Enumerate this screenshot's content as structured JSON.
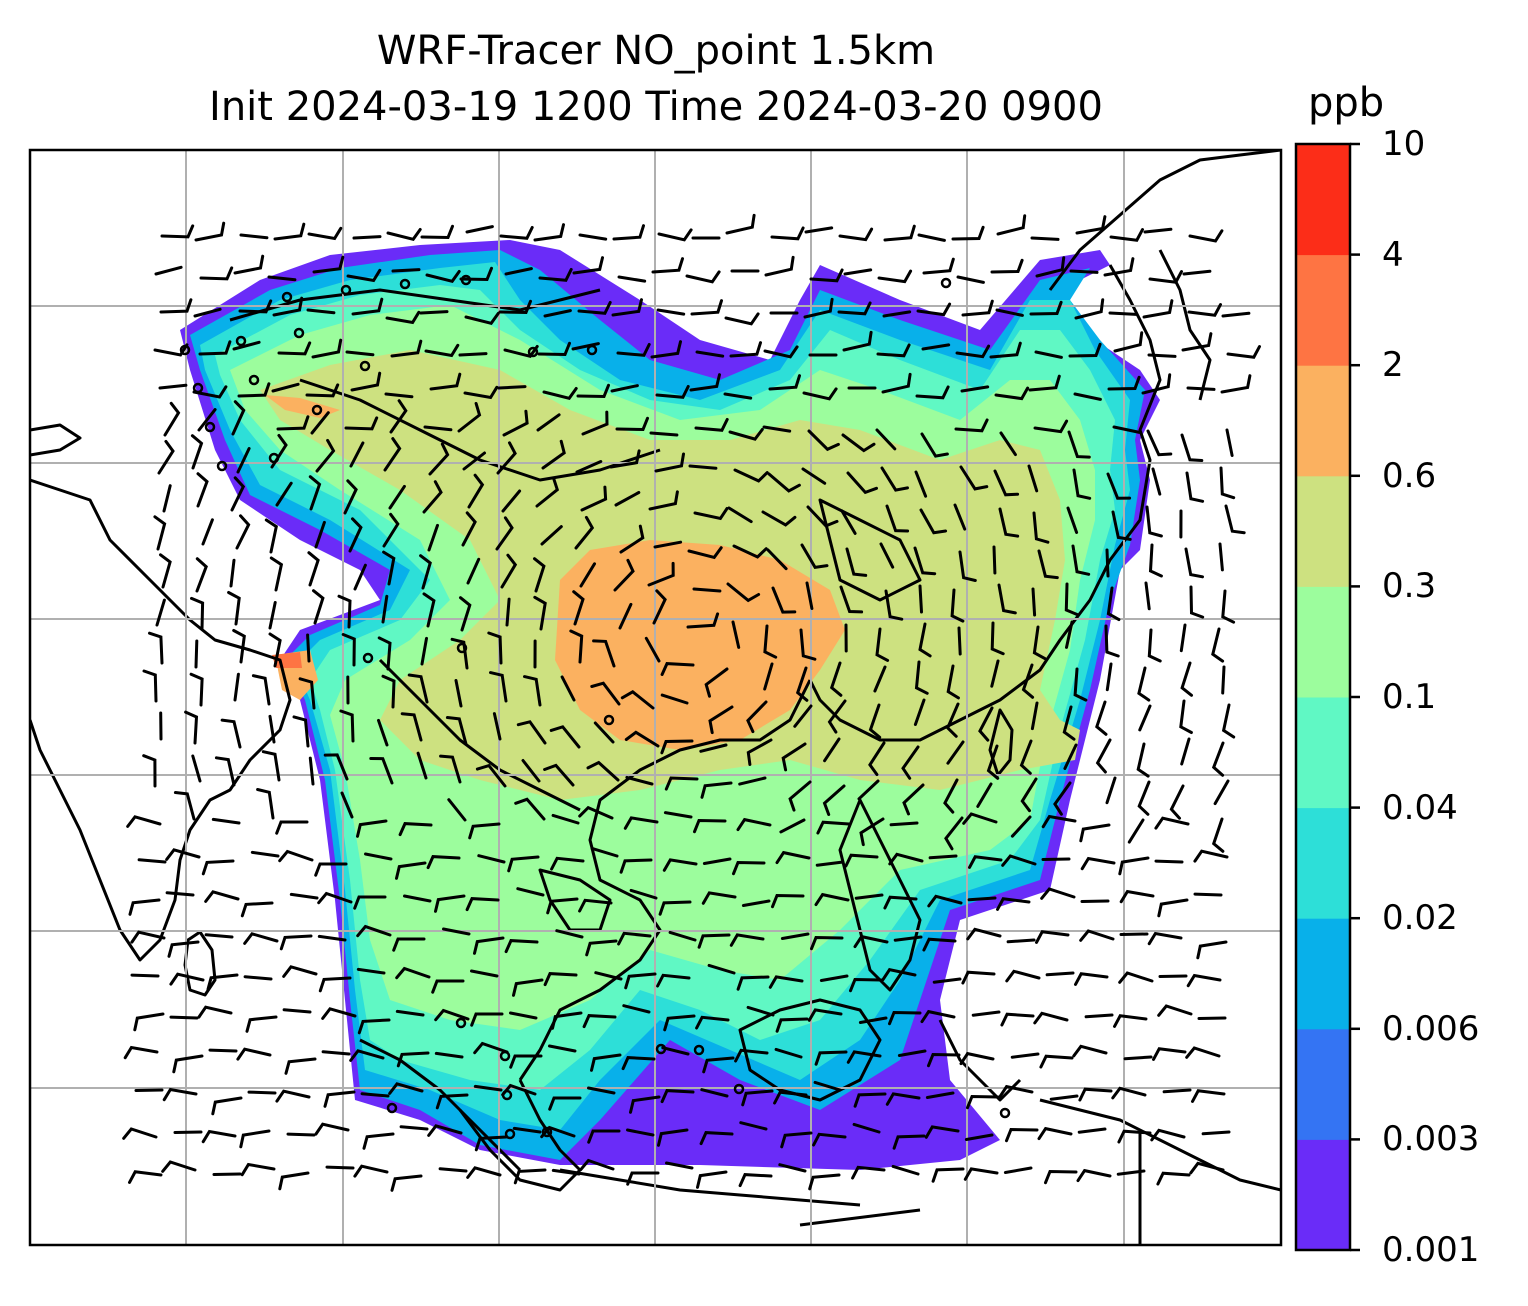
{
  "map": {
    "title_line1": "WRF-Tracer NO_point 1.5km",
    "title_line2": "Init 2024-03-19 1200 Time 2024-03-20 0900",
    "variable": "NO_point",
    "init_time": "2024-03-19 1200",
    "valid_time": "2024-03-20 0900",
    "gridlines": true,
    "overlays": [
      "coastlines",
      "wind barbs",
      "station markers"
    ]
  },
  "colorbar": {
    "unit_label": "ppb",
    "ticks": [
      "10",
      "4",
      "2",
      "0.6",
      "0.3",
      "0.1",
      "0.04",
      "0.02",
      "0.006",
      "0.003",
      "0.001"
    ],
    "colors": [
      "#6a2cf8",
      "#3474f3",
      "#08b0ea",
      "#2ddfd8",
      "#60f8c4",
      "#9cfd9d",
      "#cde180",
      "#fbb160",
      "#fe7443",
      "#fc2d18"
    ]
  }
}
